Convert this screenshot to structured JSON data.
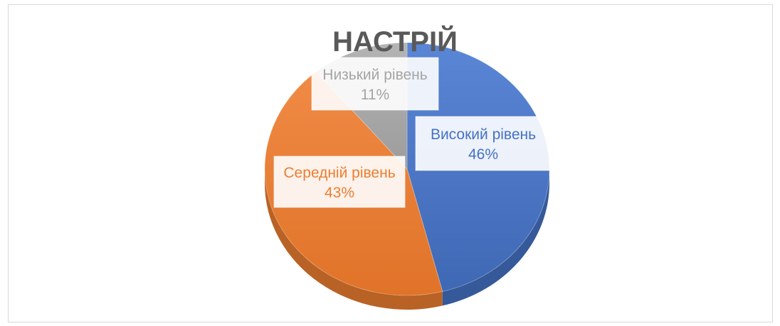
{
  "chart_data": {
    "type": "pie",
    "title": "НАСТРІЙ",
    "slices": [
      {
        "name": "Високий рівень",
        "value": 46,
        "label": "46%",
        "color": "#4472C4"
      },
      {
        "name": "Середній рівень",
        "value": 43,
        "label": "43%",
        "color": "#ED7D31"
      },
      {
        "name": "Низький рівень",
        "value": 11,
        "label": "11%",
        "color": "#A5A5A5"
      }
    ],
    "legend": "none",
    "style": "3d"
  }
}
